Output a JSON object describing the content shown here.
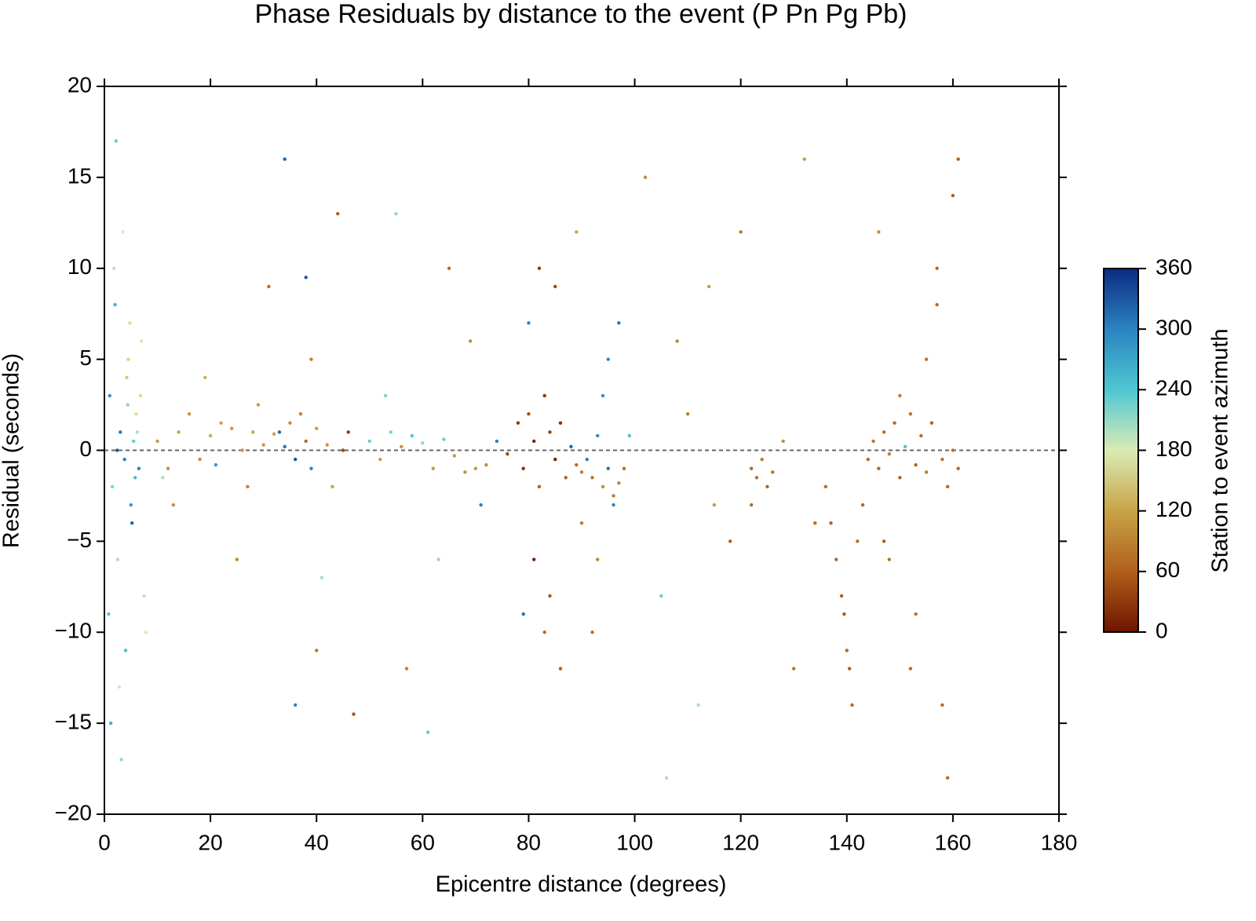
{
  "chart_data": {
    "type": "scatter",
    "title": "Phase Residuals by distance to the event (P Pn Pg Pb)",
    "x_label": "Epicentre distance (degrees)",
    "y_label": "Residual (seconds)",
    "colorbar_label": "Station to event azimuth",
    "xlim": [
      0,
      180
    ],
    "ylim": [
      -20,
      20
    ],
    "xticks": [
      0,
      20,
      40,
      60,
      80,
      100,
      120,
      140,
      160,
      180
    ],
    "yticks": [
      {
        "value": -20,
        "label": "−20"
      },
      {
        "value": -15,
        "label": "−15"
      },
      {
        "value": -10,
        "label": "−10"
      },
      {
        "value": -5,
        "label": "−5"
      },
      0,
      5,
      10,
      15,
      20
    ],
    "clim": [
      0,
      360
    ],
    "cticks": [
      0,
      60,
      120,
      180,
      240,
      300,
      360
    ],
    "colormap": [
      {
        "value": 0,
        "color": "#6e1400"
      },
      {
        "value": 60,
        "color": "#b0601c"
      },
      {
        "value": 120,
        "color": "#c9a347"
      },
      {
        "value": 180,
        "color": "#d9ecb4"
      },
      {
        "value": 240,
        "color": "#4ec6d2"
      },
      {
        "value": 300,
        "color": "#2a84c0"
      },
      {
        "value": 360,
        "color": "#0c2a82"
      }
    ],
    "hline": 0,
    "x": [
      1,
      1.5,
      2,
      2.5,
      3,
      3.5,
      4,
      4.5,
      5,
      5.5,
      6,
      6.5,
      7,
      7.5,
      1.2,
      2.2,
      3.2,
      4.2,
      5.2,
      6.2,
      0.8,
      1.8,
      2.8,
      3.8,
      4.8,
      5.8,
      6.8,
      7.8,
      2.4,
      4.4,
      10,
      12,
      14,
      16,
      18,
      20,
      22,
      24,
      26,
      28,
      30,
      32,
      13,
      19,
      25,
      29,
      11,
      21,
      27,
      31,
      33,
      34,
      35,
      36,
      37,
      38,
      39,
      40,
      42,
      45,
      38,
      40,
      36,
      44,
      47,
      34,
      39,
      41,
      46,
      43,
      50,
      52,
      54,
      56,
      58,
      60,
      62,
      64,
      66,
      68,
      70,
      72,
      55,
      57,
      61,
      65,
      63,
      53,
      69,
      71,
      74,
      76,
      78,
      79,
      80,
      81,
      82,
      83,
      84,
      85,
      86,
      87,
      82,
      84,
      80,
      83,
      85,
      86,
      81,
      79,
      88,
      89,
      90,
      91,
      92,
      93,
      94,
      95,
      96,
      97,
      98,
      95,
      93,
      90,
      97,
      99,
      92,
      96,
      89,
      94,
      102,
      105,
      108,
      112,
      115,
      120,
      122,
      123,
      124,
      125,
      126,
      122,
      128,
      132,
      118,
      110,
      130,
      134,
      106,
      114,
      136,
      137,
      138,
      139,
      139.5,
      140,
      140.5,
      141,
      142,
      143,
      144,
      145,
      146,
      147,
      148,
      149,
      150,
      151,
      152,
      153,
      154,
      155,
      156,
      157,
      158,
      159,
      160,
      161,
      147,
      150,
      152,
      155,
      157,
      160,
      148,
      153,
      158,
      161,
      146,
      159
    ],
    "values": [
      3,
      -2,
      8,
      -6,
      1,
      12,
      -11,
      5,
      -3,
      0.5,
      2,
      -1,
      6,
      -8,
      -15,
      17,
      -17,
      4,
      -4,
      1,
      -9,
      10,
      -13,
      -0.5,
      7,
      -1.5,
      3,
      -10,
      0,
      2.5,
      0.5,
      -1,
      1,
      2,
      -0.5,
      0.8,
      1.5,
      1.2,
      0,
      1,
      0.3,
      0.9,
      -3,
      4,
      -6,
      2.5,
      -1.5,
      -0.8,
      -2,
      9,
      1,
      0.2,
      1.5,
      -0.5,
      2,
      0.5,
      -1,
      1.2,
      0.3,
      0,
      9.5,
      -11,
      -14,
      13,
      -14.5,
      16,
      5,
      -7,
      1,
      -2,
      0.5,
      -0.5,
      1,
      0.2,
      0.8,
      0.4,
      -1,
      0.6,
      -0.3,
      -1.2,
      -1,
      -0.8,
      13,
      -12,
      -15.5,
      10,
      -6,
      3,
      6,
      -3,
      0.5,
      -0.2,
      1.5,
      -1,
      2,
      0.5,
      -2,
      3,
      1,
      -0.5,
      1.5,
      -1.5,
      10,
      -8,
      7,
      -10,
      9,
      -12,
      -6,
      -9,
      0.2,
      -0.8,
      -1.2,
      -0.5,
      -1.5,
      0.8,
      -2,
      -1,
      -2.5,
      -1.8,
      -1,
      5,
      -6,
      -4,
      7,
      0.8,
      -10,
      -3,
      12,
      3,
      15,
      -8,
      6,
      -14,
      -3,
      12,
      -1,
      -1.5,
      -0.5,
      -2,
      -1.2,
      -3,
      0.5,
      16,
      -5,
      2,
      -12,
      -4,
      -18,
      9,
      -2,
      -4,
      -6,
      -8,
      -9,
      -11,
      -12,
      -14,
      -5,
      -3,
      -0.5,
      0.5,
      -1,
      1,
      -0.2,
      1.5,
      -1.5,
      0.2,
      2,
      -0.8,
      0.8,
      -1.2,
      1.5,
      8,
      -0.5,
      -2,
      0,
      -1,
      -5,
      3,
      -12,
      5,
      10,
      14,
      -6,
      -9,
      -14,
      16,
      12,
      -18
    ],
    "azimuth": [
      290,
      220,
      260,
      200,
      310,
      180,
      250,
      160,
      280,
      230,
      170,
      300,
      175,
      190,
      260,
      230,
      210,
      150,
      320,
      200,
      240,
      195,
      185,
      300,
      170,
      250,
      165,
      180,
      330,
      215,
      115,
      105,
      120,
      110,
      100,
      125,
      118,
      112,
      108,
      122,
      110,
      118,
      100,
      130,
      95,
      115,
      200,
      280,
      90,
      70,
      320,
      310,
      100,
      330,
      90,
      70,
      300,
      115,
      110,
      40,
      330,
      80,
      300,
      60,
      50,
      320,
      90,
      200,
      30,
      120,
      230,
      120,
      220,
      110,
      240,
      210,
      110,
      230,
      115,
      105,
      110,
      100,
      210,
      90,
      230,
      70,
      150,
      220,
      100,
      300,
      300,
      40,
      30,
      20,
      50,
      15,
      60,
      25,
      35,
      10,
      20,
      60,
      30,
      50,
      300,
      70,
      40,
      60,
      10,
      310,
      320,
      70,
      90,
      300,
      80,
      290,
      100,
      310,
      85,
      95,
      75,
      300,
      90,
      80,
      310,
      240,
      70,
      300,
      120,
      290,
      100,
      230,
      90,
      200,
      110,
      80,
      70,
      75,
      85,
      65,
      80,
      70,
      100,
      110,
      60,
      90,
      80,
      70,
      200,
      110,
      70,
      60,
      65,
      60,
      55,
      70,
      60,
      65,
      75,
      70,
      70,
      80,
      65,
      75,
      90,
      70,
      60,
      240,
      80,
      65,
      70,
      85,
      60,
      70,
      80,
      65,
      75,
      70,
      60,
      85,
      70,
      80,
      65,
      60,
      75,
      80,
      70,
      60,
      100,
      70
    ]
  }
}
